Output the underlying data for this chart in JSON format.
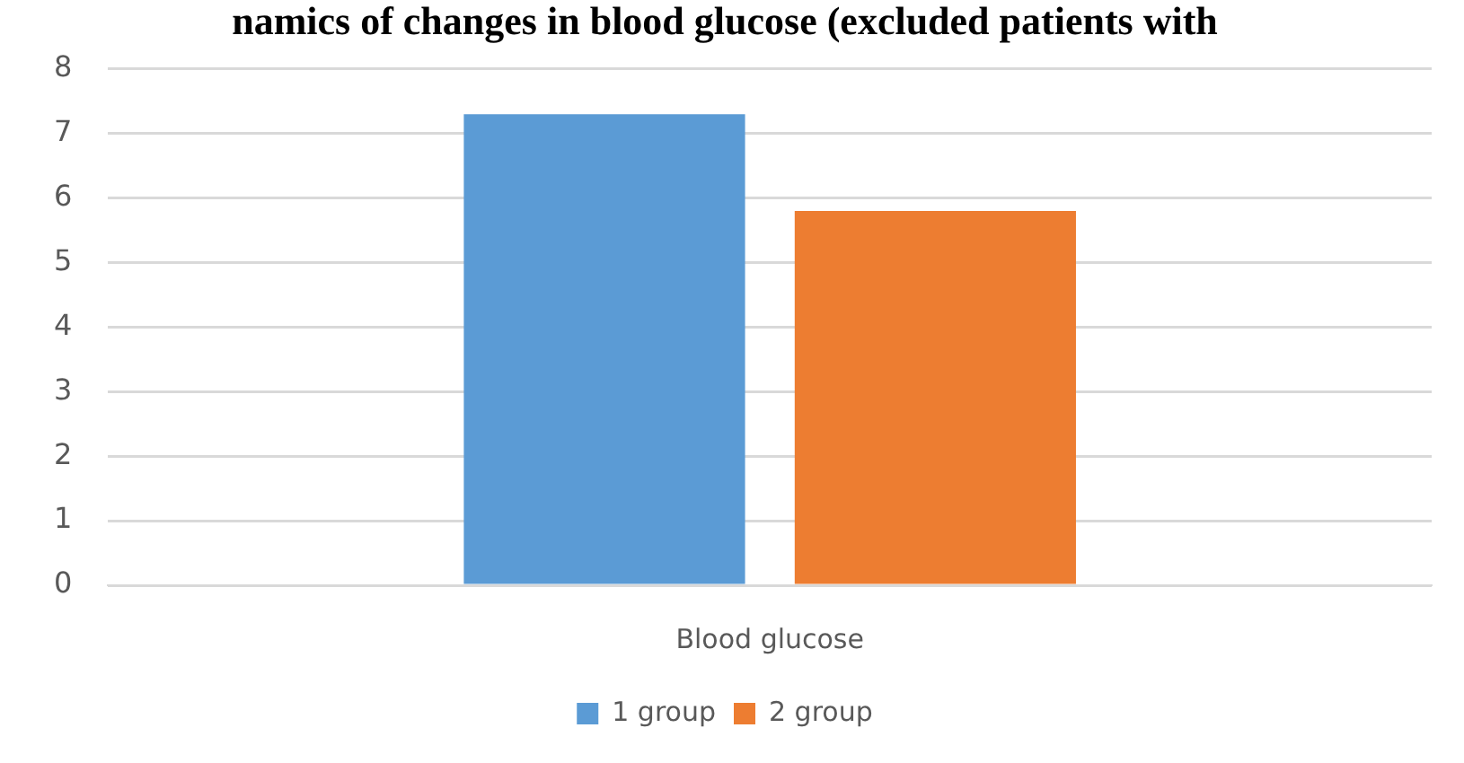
{
  "chart_data": {
    "type": "bar",
    "title": "namics of changes in blood glucose (excluded patients with",
    "categories": [
      "Blood glucose"
    ],
    "series": [
      {
        "name": "1 group",
        "color": "#5b9bd5",
        "values": [
          7.3
        ]
      },
      {
        "name": "2 group",
        "color": "#ed7d31",
        "values": [
          5.8
        ]
      }
    ],
    "ylim": [
      0,
      8
    ],
    "yticks": [
      0,
      1,
      2,
      3,
      4,
      5,
      6,
      7,
      8
    ],
    "grid": "y",
    "legend": "bottom"
  }
}
